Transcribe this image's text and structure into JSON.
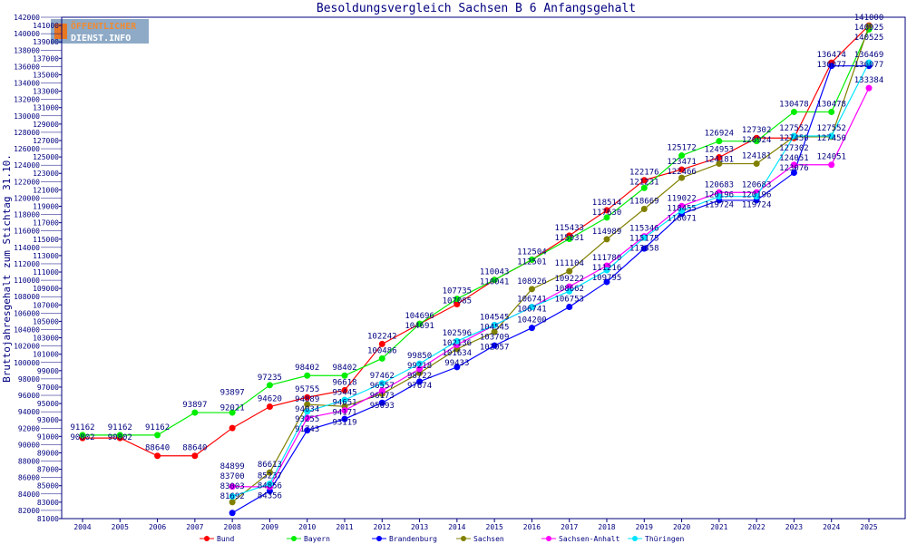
{
  "chart_data": {
    "type": "line",
    "title": "Besoldungsvergleich Sachsen B 6 Anfangsgehalt",
    "xlabel": "",
    "ylabel": "Bruttojahresgehalt zum Stichtag 31.10.",
    "ylim": [
      81000,
      142000
    ],
    "ytick_step": 1000,
    "grid": false,
    "legend_position": "bottom",
    "logo": "ÖFFENTLICHER DIENST.INFO",
    "categories": [
      "2004",
      "2005",
      "2006",
      "2007",
      "2008",
      "2009",
      "2010",
      "2011",
      "2012",
      "2013",
      "2014",
      "2015",
      "2016",
      "2017",
      "2018",
      "2019",
      "2020",
      "2021",
      "2022",
      "2023",
      "2024",
      "2025"
    ],
    "series": [
      {
        "name": "Bund",
        "color": "#ff0000",
        "values": [
          90802,
          90802,
          88640,
          88640,
          92021,
          94620,
          95755,
          96618,
          102242,
          104691,
          107085,
          110041,
          112501,
          115433,
          118514,
          122176,
          123471,
          124953,
          127302,
          127302,
          136474,
          141000
        ]
      },
      {
        "name": "Bayern",
        "color": "#00ee00",
        "values": [
          91162,
          91162,
          91162,
          93897,
          93897,
          97235,
          98402,
          98402,
          100486,
          104696,
          107735,
          110043,
          112504,
          115031,
          117630,
          121231,
          125172,
          126924,
          126924,
          130478,
          130478,
          140525
        ]
      },
      {
        "name": "Brandenburg",
        "color": "#0000ff",
        "values": [
          null,
          null,
          null,
          null,
          81692,
          84356,
          91743,
          93119,
          95093,
          97674,
          99433,
          102057,
          104200,
          106753,
          109795,
          113858,
          118071,
          119724,
          119724,
          123076,
          136077,
          136077
        ]
      },
      {
        "name": "Sachsen",
        "color": "#808000",
        "values": [
          null,
          null,
          null,
          null,
          83003,
          86613,
          94889,
          94651,
          96173,
          98722,
          101634,
          103709,
          108926,
          111104,
          114989,
          118669,
          122466,
          124181,
          124181,
          127450,
          127450,
          140925
        ]
      },
      {
        "name": "Sachsen-Anhalt",
        "color": "#ff00ff",
        "values": [
          null,
          null,
          null,
          null,
          84899,
          84856,
          93255,
          94171,
          96557,
          99218,
          102136,
          104545,
          106741,
          109222,
          111780,
          115346,
          119022,
          120683,
          120683,
          124051,
          124051,
          133384
        ]
      },
      {
        "name": "Thüringen",
        "color": "#00e5ff",
        "values": [
          null,
          null,
          null,
          null,
          83700,
          85237,
          94034,
          95445,
          97462,
          99850,
          102596,
          104545,
          106741,
          108662,
          111216,
          115175,
          118455,
          120196,
          120196,
          127552,
          127552,
          136469
        ]
      }
    ]
  }
}
